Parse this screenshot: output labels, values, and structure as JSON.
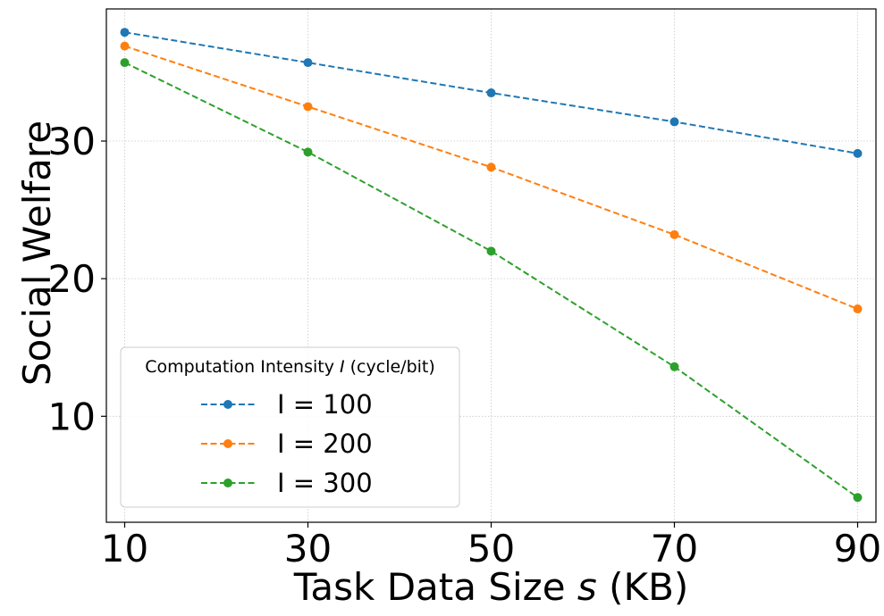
{
  "chart_data": {
    "type": "line",
    "x": [
      10,
      30,
      50,
      70,
      90
    ],
    "xticks": [
      10,
      30,
      50,
      70,
      90
    ],
    "yticks": [
      10,
      20,
      30
    ],
    "xlim": [
      8,
      92
    ],
    "ylim": [
      2.3,
      39.6
    ],
    "xlabel_prefix": "Task Data Size ",
    "xlabel_var": "s",
    "xlabel_suffix": " (KB)",
    "ylabel": "Social Welfare",
    "grid": true,
    "legend": {
      "placement": "lower-left",
      "title_prefix": "Computation Intensity ",
      "title_var": "I",
      "title_suffix": " (cycle/bit)"
    },
    "series": [
      {
        "name": "I = 100",
        "color": "#1f77b4",
        "values": [
          37.9,
          35.7,
          33.5,
          31.4,
          29.1
        ]
      },
      {
        "name": "I = 200",
        "color": "#ff7f0e",
        "values": [
          36.9,
          32.5,
          28.1,
          23.2,
          17.8
        ]
      },
      {
        "name": "I = 300",
        "color": "#2ca02c",
        "values": [
          35.7,
          29.2,
          22.0,
          13.6,
          4.1
        ]
      }
    ]
  }
}
